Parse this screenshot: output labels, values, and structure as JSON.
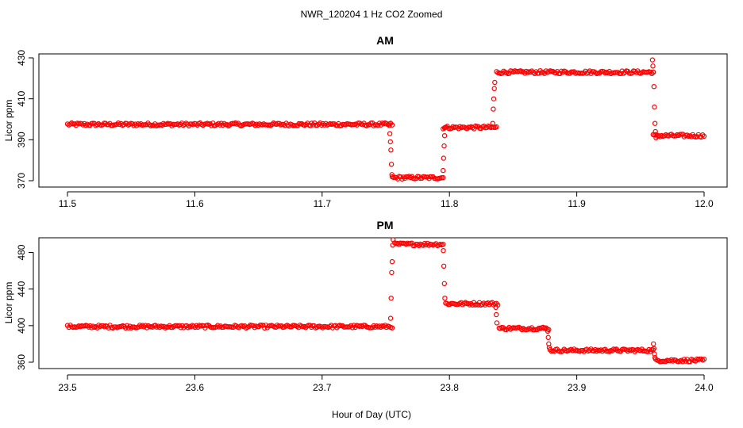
{
  "title": "NWR_120204  1 Hz CO2 Zoomed",
  "xlabel": "Hour of Day (UTC)",
  "colors": {
    "points": "#ff0000",
    "axis": "#000000",
    "background": "#ffffff"
  },
  "chart_data": [
    {
      "type": "scatter",
      "title": "AM",
      "xlabel": "",
      "ylabel": "Licor ppm",
      "xlim": [
        11.5,
        12.0
      ],
      "ylim": [
        370,
        430
      ],
      "xticks": [
        "11.5",
        "11.6",
        "11.7",
        "11.8",
        "11.9",
        "12.0"
      ],
      "yticks": [
        "370",
        "390",
        "410",
        "430"
      ],
      "grid": false,
      "legend": "none",
      "series": [
        {
          "segments": [
            {
              "x": [
                11.5,
                11.755
              ],
              "y": 397.5
            },
            {
              "x": [
                11.755,
                11.795
              ],
              "y": 371.5
            },
            {
              "x": [
                11.795,
                11.837
              ],
              "y": 396
            },
            {
              "x": [
                11.837,
                11.96
              ],
              "y": 423
            },
            {
              "x": [
                11.96,
                12.0
              ],
              "y": 392
            }
          ],
          "transitions": [
            {
              "x": 11.754,
              "y": [
                397,
                393,
                389,
                385,
                378,
                373
              ]
            },
            {
              "x": 11.796,
              "y": [
                375,
                381,
                387,
                392,
                396
              ]
            },
            {
              "x": 11.835,
              "y": [
                398,
                405,
                410,
                415,
                418
              ]
            },
            {
              "x": 11.961,
              "y": [
                429,
                426,
                423,
                416,
                406,
                398,
                394,
                391
              ]
            }
          ]
        }
      ]
    },
    {
      "type": "scatter",
      "title": "PM",
      "xlabel": "Hour of Day (UTC)",
      "ylabel": "Licor ppm",
      "xlim": [
        23.5,
        24.0
      ],
      "ylim": [
        360,
        490
      ],
      "xticks": [
        "23.5",
        "23.6",
        "23.7",
        "23.8",
        "23.9",
        "24.0"
      ],
      "yticks": [
        "360",
        "400",
        "440",
        "480"
      ],
      "grid": false,
      "legend": "none",
      "series": [
        {
          "segments": [
            {
              "x": [
                23.5,
                23.755
              ],
              "y": 399
            },
            {
              "x": [
                23.757,
                23.795
              ],
              "y": 489
            },
            {
              "x": [
                23.797,
                23.838
              ],
              "y": 424
            },
            {
              "x": [
                23.839,
                23.878
              ],
              "y": 397
            },
            {
              "x": [
                23.879,
                23.96
              ],
              "y": 373
            },
            {
              "x": [
                23.962,
                24.0
              ],
              "y": 362
            }
          ],
          "transitions": [
            {
              "x": 23.755,
              "y": [
                408,
                430,
                458,
                470,
                488,
                494
              ]
            },
            {
              "x": 23.796,
              "y": [
                482,
                465,
                446,
                430
              ]
            },
            {
              "x": 23.837,
              "y": [
                420,
                412,
                403
              ]
            },
            {
              "x": 23.878,
              "y": [
                394,
                387,
                380,
                376
              ]
            },
            {
              "x": 23.961,
              "y": [
                380,
                375,
                369,
                365
              ]
            }
          ]
        }
      ]
    }
  ]
}
